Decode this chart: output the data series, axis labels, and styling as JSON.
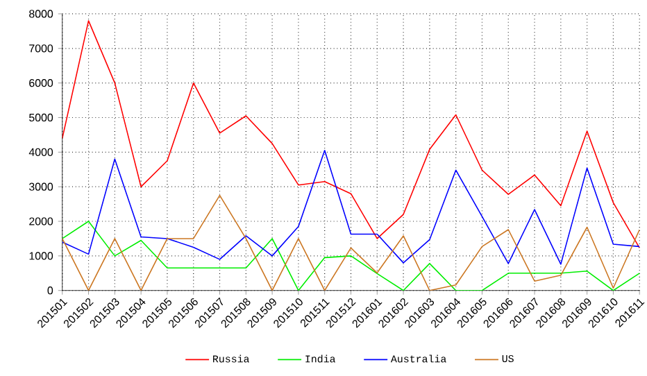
{
  "chart_data": {
    "type": "line",
    "categories": [
      "201501",
      "201502",
      "201503",
      "201504",
      "201505",
      "201506",
      "201507",
      "201508",
      "201509",
      "201510",
      "201511",
      "201512",
      "201601",
      "201602",
      "201603",
      "201604",
      "201605",
      "201606",
      "201607",
      "201608",
      "201609",
      "201610",
      "201611"
    ],
    "series": [
      {
        "name": "Russia",
        "color": "#ff0000",
        "values": [
          4400,
          7800,
          6000,
          3000,
          3750,
          6000,
          4550,
          5050,
          4250,
          3050,
          3150,
          2800,
          1500,
          2200,
          4080,
          5080,
          3480,
          2780,
          3340,
          2450,
          4610,
          2540,
          1230
        ]
      },
      {
        "name": "India",
        "color": "#00ee00",
        "values": [
          1500,
          2000,
          1000,
          1450,
          650,
          650,
          650,
          650,
          1500,
          0,
          950,
          1000,
          490,
          0,
          780,
          0,
          0,
          500,
          500,
          500,
          560,
          0,
          500
        ]
      },
      {
        "name": "Australia",
        "color": "#0000ff",
        "values": [
          1400,
          1050,
          3800,
          1550,
          1500,
          1250,
          900,
          1580,
          1000,
          1850,
          4050,
          1630,
          1630,
          800,
          1470,
          3480,
          2140,
          780,
          2340,
          760,
          3540,
          1340,
          1270
        ]
      },
      {
        "name": "US",
        "color": "#cc7722",
        "values": [
          1500,
          0,
          1500,
          0,
          1500,
          1500,
          2750,
          1500,
          0,
          1500,
          0,
          1230,
          510,
          1580,
          0,
          160,
          1270,
          1760,
          270,
          440,
          1830,
          70,
          1760
        ]
      }
    ],
    "ylim": [
      0,
      8000
    ],
    "yticks": [
      0,
      1000,
      2000,
      3000,
      4000,
      5000,
      6000,
      7000,
      8000
    ],
    "grid": true,
    "legend": "bottom",
    "marker": "none",
    "line_style": "solid"
  }
}
